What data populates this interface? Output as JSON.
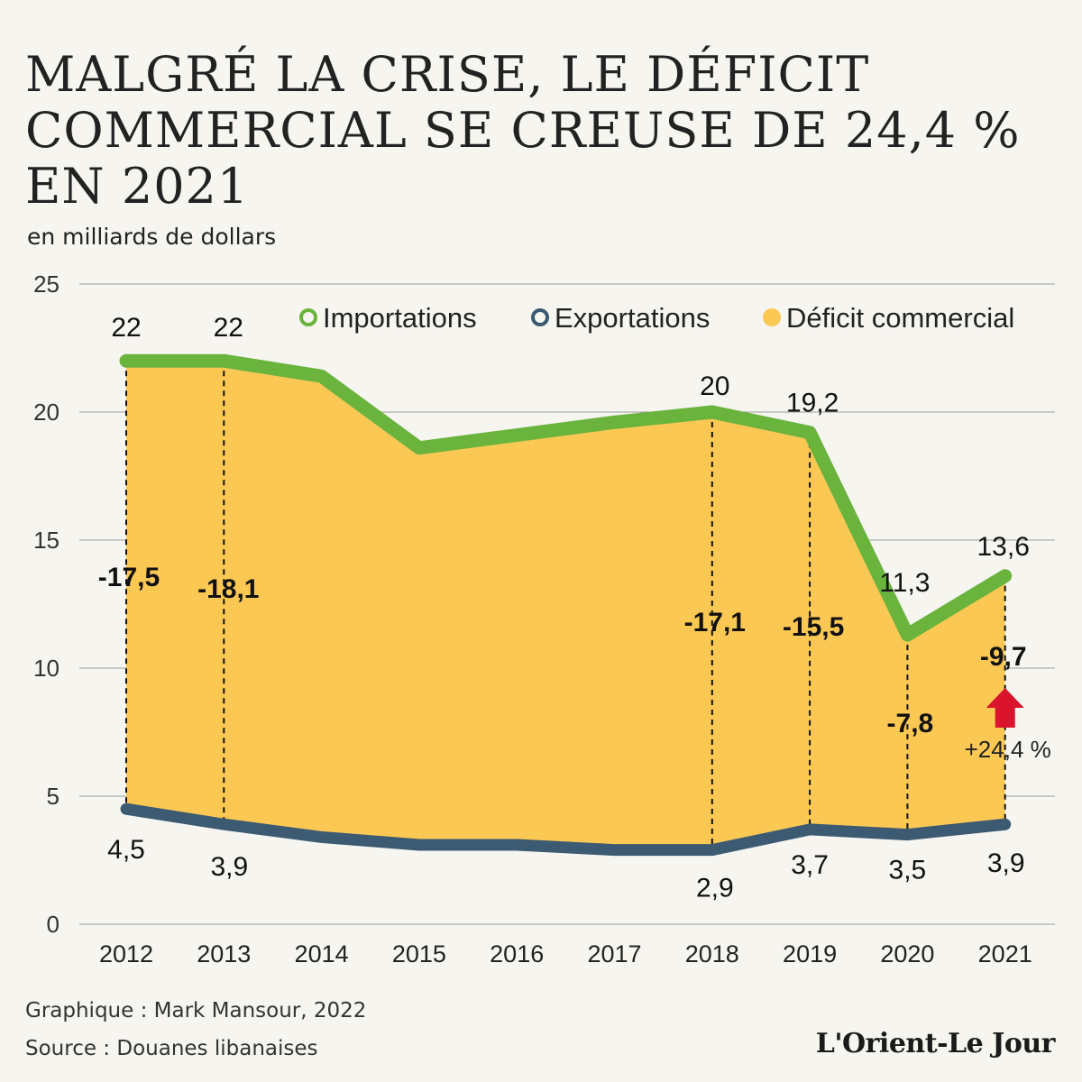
{
  "title_lines": [
    "MALGRÉ LA CRISE, LE DÉFICIT",
    "COMMERCIAL SE CREUSE DE 24,4 %",
    "EN 2021"
  ],
  "subtitle": "en milliards de dollars",
  "colors": {
    "imports": "#6ab43e",
    "exports": "#3c5a72",
    "deficit": "#fcc854",
    "arrow": "#d9142c",
    "grid": "#9a9a9a"
  },
  "chart_data": {
    "type": "area",
    "title": "MALGRÉ LA CRISE, LE DÉFICIT COMMERCIAL SE CREUSE DE 24,4 % EN 2021",
    "ylabel": "en milliards de dollars",
    "ylim": [
      0,
      25
    ],
    "yticks": [
      "0",
      "5",
      "10",
      "15",
      "20",
      "25"
    ],
    "grid": true,
    "legend_position": "top-right",
    "categories": [
      "2012",
      "2013",
      "2014",
      "2015",
      "2016",
      "2017",
      "2018",
      "2019",
      "2020",
      "2021"
    ],
    "series": [
      {
        "name": "Importations",
        "values": [
          22,
          22,
          21.4,
          18.6,
          19.1,
          19.6,
          20,
          19.2,
          11.3,
          13.6
        ],
        "labels": [
          "22",
          "22",
          null,
          null,
          null,
          null,
          "20",
          "19,2",
          "11,3",
          "13,6"
        ]
      },
      {
        "name": "Exportations",
        "values": [
          4.5,
          3.9,
          3.4,
          3.1,
          3.1,
          2.9,
          2.9,
          3.7,
          3.5,
          3.9
        ],
        "labels": [
          "4,5",
          "3,9",
          null,
          null,
          null,
          null,
          "2,9",
          "3,7",
          "3,5",
          "3,9"
        ]
      },
      {
        "name": "Déficit commercial",
        "values": [
          -17.5,
          -18.1,
          null,
          null,
          null,
          null,
          -17.1,
          -15.5,
          -7.8,
          -9.7
        ],
        "labels": [
          "-17,5",
          "-18,1",
          null,
          null,
          null,
          null,
          "-17,1",
          "-15,5",
          "-7,8",
          "-9,7"
        ]
      }
    ],
    "annotations": [
      {
        "category": "2021",
        "text": "+24,4 %",
        "icon": "up-arrow-icon"
      }
    ]
  },
  "credits": {
    "graphic": "Graphique : Mark Mansour, 2022",
    "source": "Source : Douanes libanaises"
  },
  "logo": "L'Orient-Le Jour"
}
